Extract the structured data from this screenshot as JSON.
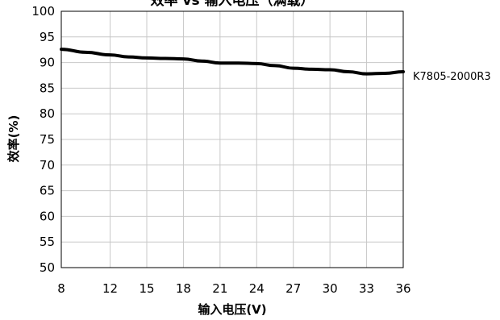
{
  "chart_data": {
    "type": "line",
    "title": "效率 vs 输入电压（满载）",
    "xlabel": "输入电压(V)",
    "ylabel": "效率(%)",
    "xlim": [
      8,
      36
    ],
    "ylim": [
      50,
      100
    ],
    "x_ticks": [
      8,
      12,
      15,
      18,
      21,
      24,
      27,
      30,
      33,
      36
    ],
    "y_ticks": [
      50,
      55,
      60,
      65,
      70,
      75,
      80,
      85,
      90,
      95,
      100
    ],
    "grid": true,
    "legend": "right, at line end",
    "series": [
      {
        "name": "K7805-2000R3",
        "color": "#000000",
        "x": [
          8,
          10,
          12,
          13.5,
          15,
          16.5,
          18,
          19.5,
          21,
          22.5,
          24,
          25.5,
          27,
          28.5,
          30,
          31.5,
          33,
          34.5,
          36
        ],
        "values": [
          92.6,
          92.0,
          91.5,
          91.1,
          90.9,
          90.8,
          90.7,
          90.3,
          89.9,
          89.9,
          89.8,
          89.4,
          88.9,
          88.7,
          88.6,
          88.2,
          87.8,
          87.9,
          88.2
        ]
      }
    ]
  }
}
